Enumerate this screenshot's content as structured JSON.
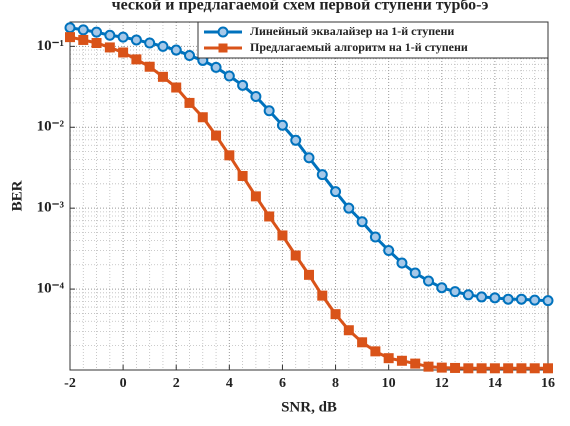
{
  "chart_data": {
    "type": "line",
    "title": "ческой и предлагаемой схем первой ступени турбо-э",
    "xlabel": "SNR, dB",
    "ylabel": "BER",
    "x": [
      -2,
      -1.5,
      -1,
      -0.5,
      0,
      0.5,
      1,
      1.5,
      2,
      2.5,
      3,
      3.5,
      4,
      4.5,
      5,
      5.5,
      6,
      6.5,
      7,
      7.5,
      8,
      8.5,
      9,
      9.5,
      10,
      10.5,
      11,
      11.5,
      12,
      12.5,
      13,
      13.5,
      14,
      14.5,
      15,
      15.5,
      16
    ],
    "series": [
      {
        "name": "Линейный эквалайзер на 1-й ступени",
        "color": "#0072bd",
        "marker": "circle",
        "values": [
          0.17,
          0.16,
          0.15,
          0.137,
          0.13,
          0.12,
          0.11,
          0.1,
          0.09,
          0.077,
          0.067,
          0.055,
          0.043,
          0.033,
          0.024,
          0.016,
          0.0106,
          0.0069,
          0.0042,
          0.0026,
          0.0016,
          0.001,
          0.00068,
          0.00044,
          0.0003,
          0.00021,
          0.000158,
          0.000126,
          0.000104,
          9.3e-05,
          8.5e-05,
          8e-05,
          7.8e-05,
          7.5e-05,
          7.5e-05,
          7.3e-05,
          7.2e-05
        ]
      },
      {
        "name": "Предлагаемый алгоритм на 1-й ступени",
        "color": "#d95319",
        "marker": "square",
        "values": [
          0.13,
          0.12,
          0.11,
          0.097,
          0.084,
          0.069,
          0.056,
          0.042,
          0.031,
          0.02,
          0.0133,
          0.0079,
          0.0045,
          0.0025,
          0.0014,
          0.00079,
          0.00046,
          0.00026,
          0.00015,
          8.3e-05,
          4.9e-05,
          3.1e-05,
          2.2e-05,
          1.7e-05,
          1.4e-05,
          1.3e-05,
          1.2e-05,
          1.1e-05,
          1.07e-05,
          1.06e-05,
          1.05e-05,
          1.05e-05,
          1.05e-05,
          1.05e-05,
          1.05e-05,
          1.05e-05,
          1.05e-05
        ]
      }
    ],
    "xlim": [
      -2,
      16
    ],
    "xticks": [
      -2,
      0,
      2,
      4,
      6,
      8,
      10,
      12,
      14,
      16
    ],
    "ylim": [
      1e-05,
      0.2
    ],
    "yscale": "log",
    "yticks": [
      {
        "value": 0.1,
        "label": "10⁻¹"
      },
      {
        "value": 0.01,
        "label": "10⁻²"
      },
      {
        "value": 0.001,
        "label": "10⁻³"
      },
      {
        "value": 0.0001,
        "label": "10⁻⁴"
      }
    ],
    "grid": true,
    "legend": "upper right"
  }
}
